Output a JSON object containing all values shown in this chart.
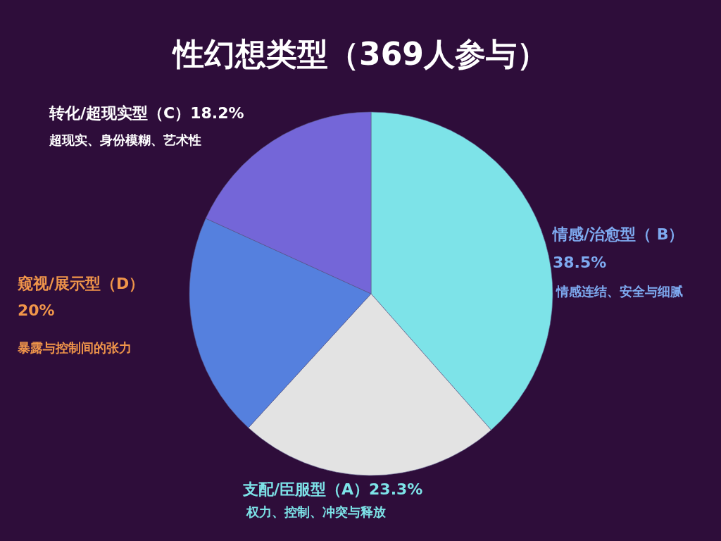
{
  "chart_data": {
    "type": "pie",
    "title": "性幻想类型（369人参与）",
    "categories": [
      "情感/治愈型（ B）",
      "支配/臣服型（A）",
      "窥视/展示型（D）",
      "转化/超现实型（C）"
    ],
    "values": [
      38.5,
      23.3,
      20,
      18.2
    ],
    "colors": [
      "#7de3e8",
      "#e3e3e3",
      "#5580de",
      "#7466d8"
    ],
    "value_labels": [
      "38.5%",
      "23.3%",
      "20%",
      "18.2%"
    ],
    "annotations": [
      "情感连结、安全与细腻",
      "权力、控制、冲突与释放",
      "暴露与控制间的张力",
      "超现实、身份模糊、艺术性"
    ]
  }
}
